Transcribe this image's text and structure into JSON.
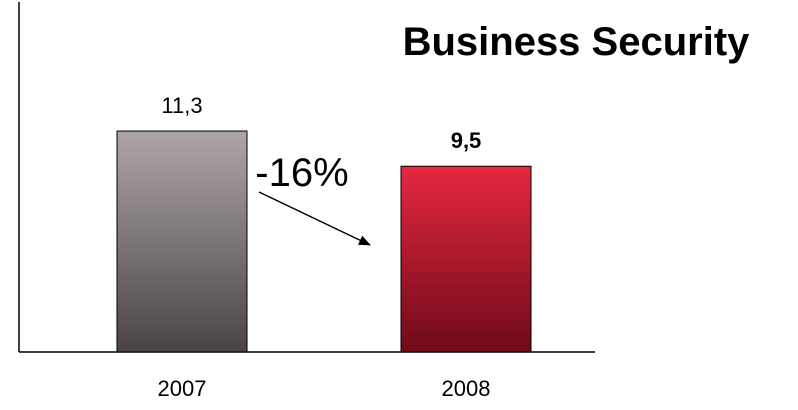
{
  "chart_data": {
    "type": "bar",
    "title": "Business Security",
    "categories": [
      "2007",
      "2008"
    ],
    "values": [
      11.3,
      9.5
    ],
    "value_labels": [
      "11,3",
      "9,5"
    ],
    "bar_colors": [
      "#8a8484",
      "#b8182c"
    ],
    "change_label": "-16%",
    "xlabel": "",
    "ylabel": "",
    "ylim": [
      0,
      18
    ],
    "grid": false,
    "legend": "none"
  }
}
